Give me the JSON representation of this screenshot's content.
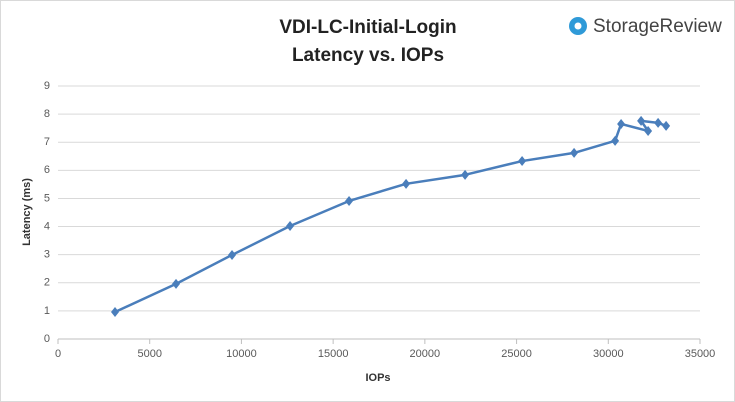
{
  "chart_data": {
    "type": "line",
    "title": "VDI-LC-Initial-Login",
    "subtitle": "Latency vs. IOPs",
    "logo": "StorageReview",
    "x_label": "IOPs",
    "y_label": "Latency (ms)",
    "x": [
      3108,
      6434,
      9487,
      12650,
      15867,
      18975,
      22192,
      25300,
      28135,
      30371,
      30698,
      32170,
      31788,
      32715,
      33151
    ],
    "series": [
      {
        "name": "Latency",
        "color": "#4a7ebb",
        "values": [
          0.96,
          1.96,
          2.99,
          4.02,
          4.91,
          5.52,
          5.84,
          6.33,
          6.62,
          7.05,
          7.65,
          7.4,
          7.76,
          7.69,
          7.58
        ]
      }
    ],
    "xlim": [
      0,
      35000
    ],
    "xticks": [
      0,
      5000,
      10000,
      15000,
      20000,
      25000,
      30000,
      35000
    ],
    "ylim": [
      0,
      9
    ],
    "yticks": [
      0,
      1,
      2,
      3,
      4,
      5,
      6,
      7,
      8,
      9
    ],
    "grid": true
  }
}
